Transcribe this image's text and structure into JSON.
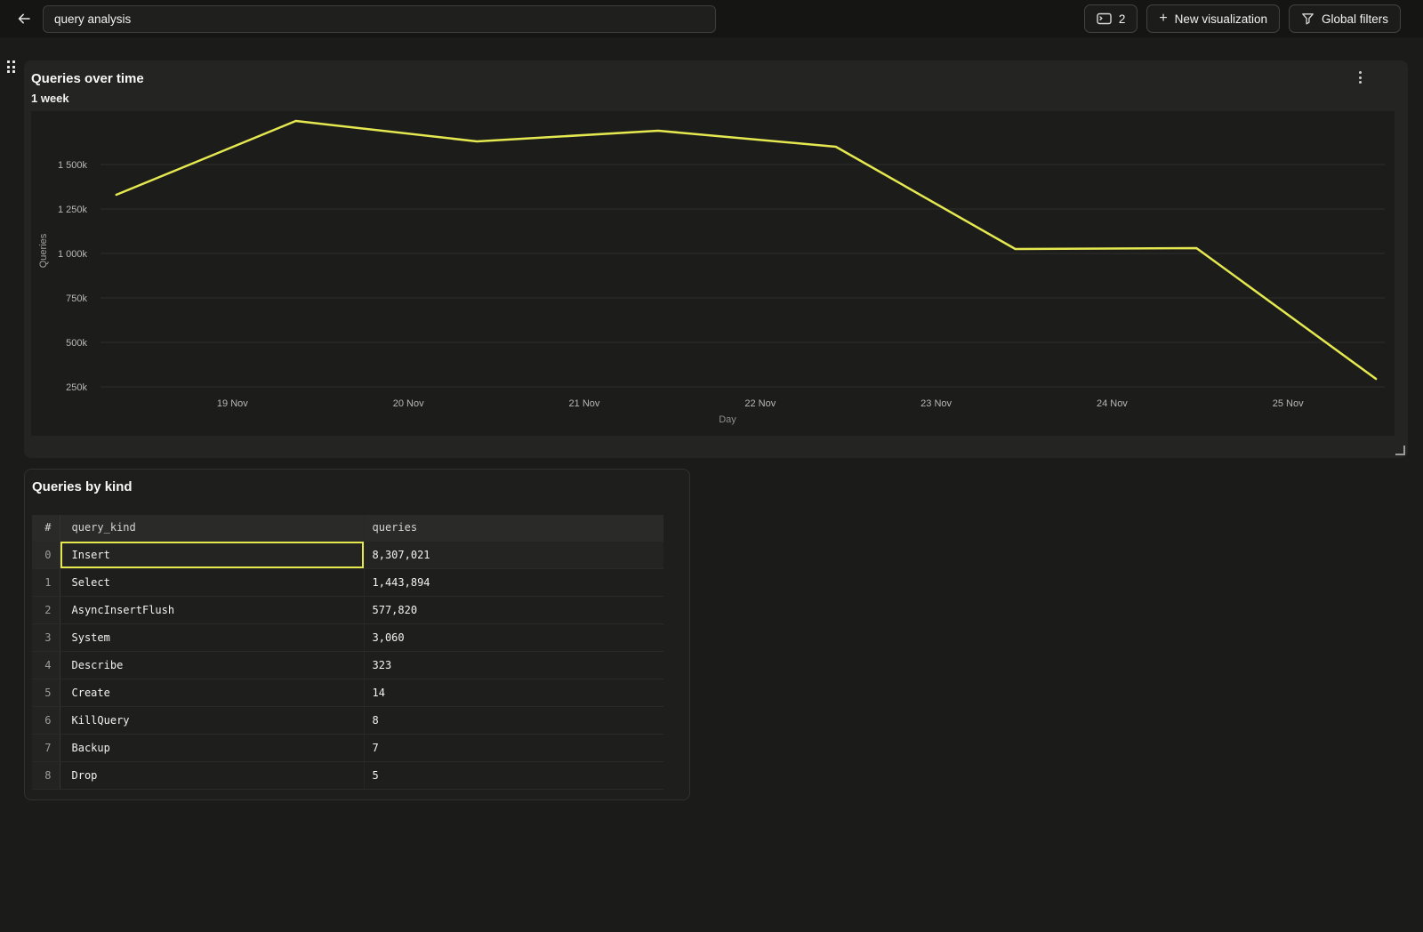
{
  "colors": {
    "accent_yellow": "#e5e94f",
    "panel_bg": "#242423",
    "page_bg": "#1b1b1a"
  },
  "topbar": {
    "title_value": "query analysis",
    "console_button_count": "2",
    "new_visualization_label": "New visualization",
    "global_filters_label": "Global filters"
  },
  "chart_data": {
    "type": "line",
    "title": "Queries over time",
    "subtitle": "1 week",
    "xlabel": "Day",
    "ylabel": "Queries",
    "grid": "horizontal",
    "legend": "none",
    "x_range_days_nov": [
      18.25,
      25.55
    ],
    "ylim_k": [
      0,
      1800
    ],
    "y_ticks": [
      {
        "value_k": 1500,
        "label": "1 500k"
      },
      {
        "value_k": 1250,
        "label": "1 250k"
      },
      {
        "value_k": 1000,
        "label": "1 000k"
      },
      {
        "value_k": 750,
        "label": "750k"
      },
      {
        "value_k": 500,
        "label": "500k"
      },
      {
        "value_k": 250,
        "label": "250k"
      }
    ],
    "x_ticks": [
      {
        "day": 19,
        "label": "19 Nov"
      },
      {
        "day": 20,
        "label": "20 Nov"
      },
      {
        "day": 21,
        "label": "21 Nov"
      },
      {
        "day": 22,
        "label": "22 Nov"
      },
      {
        "day": 23,
        "label": "23 Nov"
      },
      {
        "day": 24,
        "label": "24 Nov"
      },
      {
        "day": 25,
        "label": "25 Nov"
      }
    ],
    "series": [
      {
        "name": "Queries",
        "color": "#e5e94f",
        "points": [
          {
            "day": 18.34,
            "value_k": 1330
          },
          {
            "day": 19.36,
            "value_k": 1745
          },
          {
            "day": 20.39,
            "value_k": 1630
          },
          {
            "day": 21.42,
            "value_k": 1690
          },
          {
            "day": 22.43,
            "value_k": 1600
          },
          {
            "day": 23.45,
            "value_k": 1025
          },
          {
            "day": 24.48,
            "value_k": 1030
          },
          {
            "day": 25.5,
            "value_k": 295
          }
        ]
      }
    ]
  },
  "table": {
    "title": "Queries by kind",
    "columns": [
      "#",
      "query_kind",
      "queries"
    ],
    "selected": {
      "row_index": 0,
      "column": "query_kind"
    },
    "rows": [
      {
        "index": "0",
        "query_kind": "Insert",
        "queries": "8,307,021"
      },
      {
        "index": "1",
        "query_kind": "Select",
        "queries": "1,443,894"
      },
      {
        "index": "2",
        "query_kind": "AsyncInsertFlush",
        "queries": "577,820"
      },
      {
        "index": "3",
        "query_kind": "System",
        "queries": "3,060"
      },
      {
        "index": "4",
        "query_kind": "Describe",
        "queries": "323"
      },
      {
        "index": "5",
        "query_kind": "Create",
        "queries": "14"
      },
      {
        "index": "6",
        "query_kind": "KillQuery",
        "queries": "8"
      },
      {
        "index": "7",
        "query_kind": "Backup",
        "queries": "7"
      },
      {
        "index": "8",
        "query_kind": "Drop",
        "queries": "5"
      }
    ]
  }
}
